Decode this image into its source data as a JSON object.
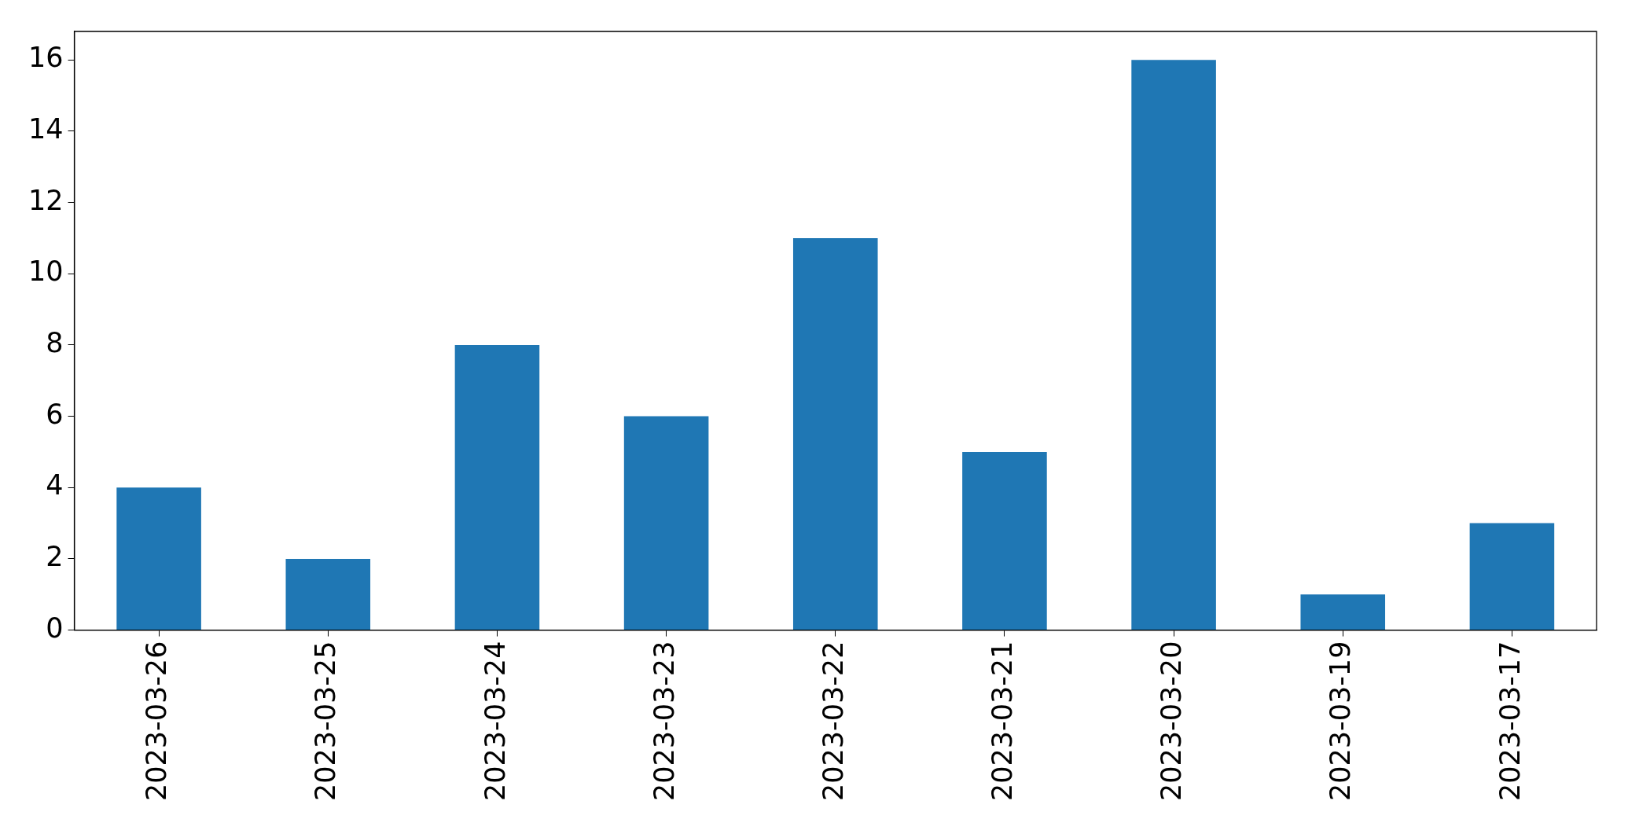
{
  "chart_data": {
    "type": "bar",
    "categories": [
      "2023-03-26",
      "2023-03-25",
      "2023-03-24",
      "2023-03-23",
      "2023-03-22",
      "2023-03-21",
      "2023-03-20",
      "2023-03-19",
      "2023-03-17"
    ],
    "values": [
      4,
      2,
      8,
      6,
      11,
      5,
      16,
      1,
      3
    ],
    "color": "#1f77b4",
    "ylim": [
      0,
      16.8
    ],
    "yticks": [
      0,
      2,
      4,
      6,
      8,
      10,
      12,
      14,
      16
    ]
  }
}
